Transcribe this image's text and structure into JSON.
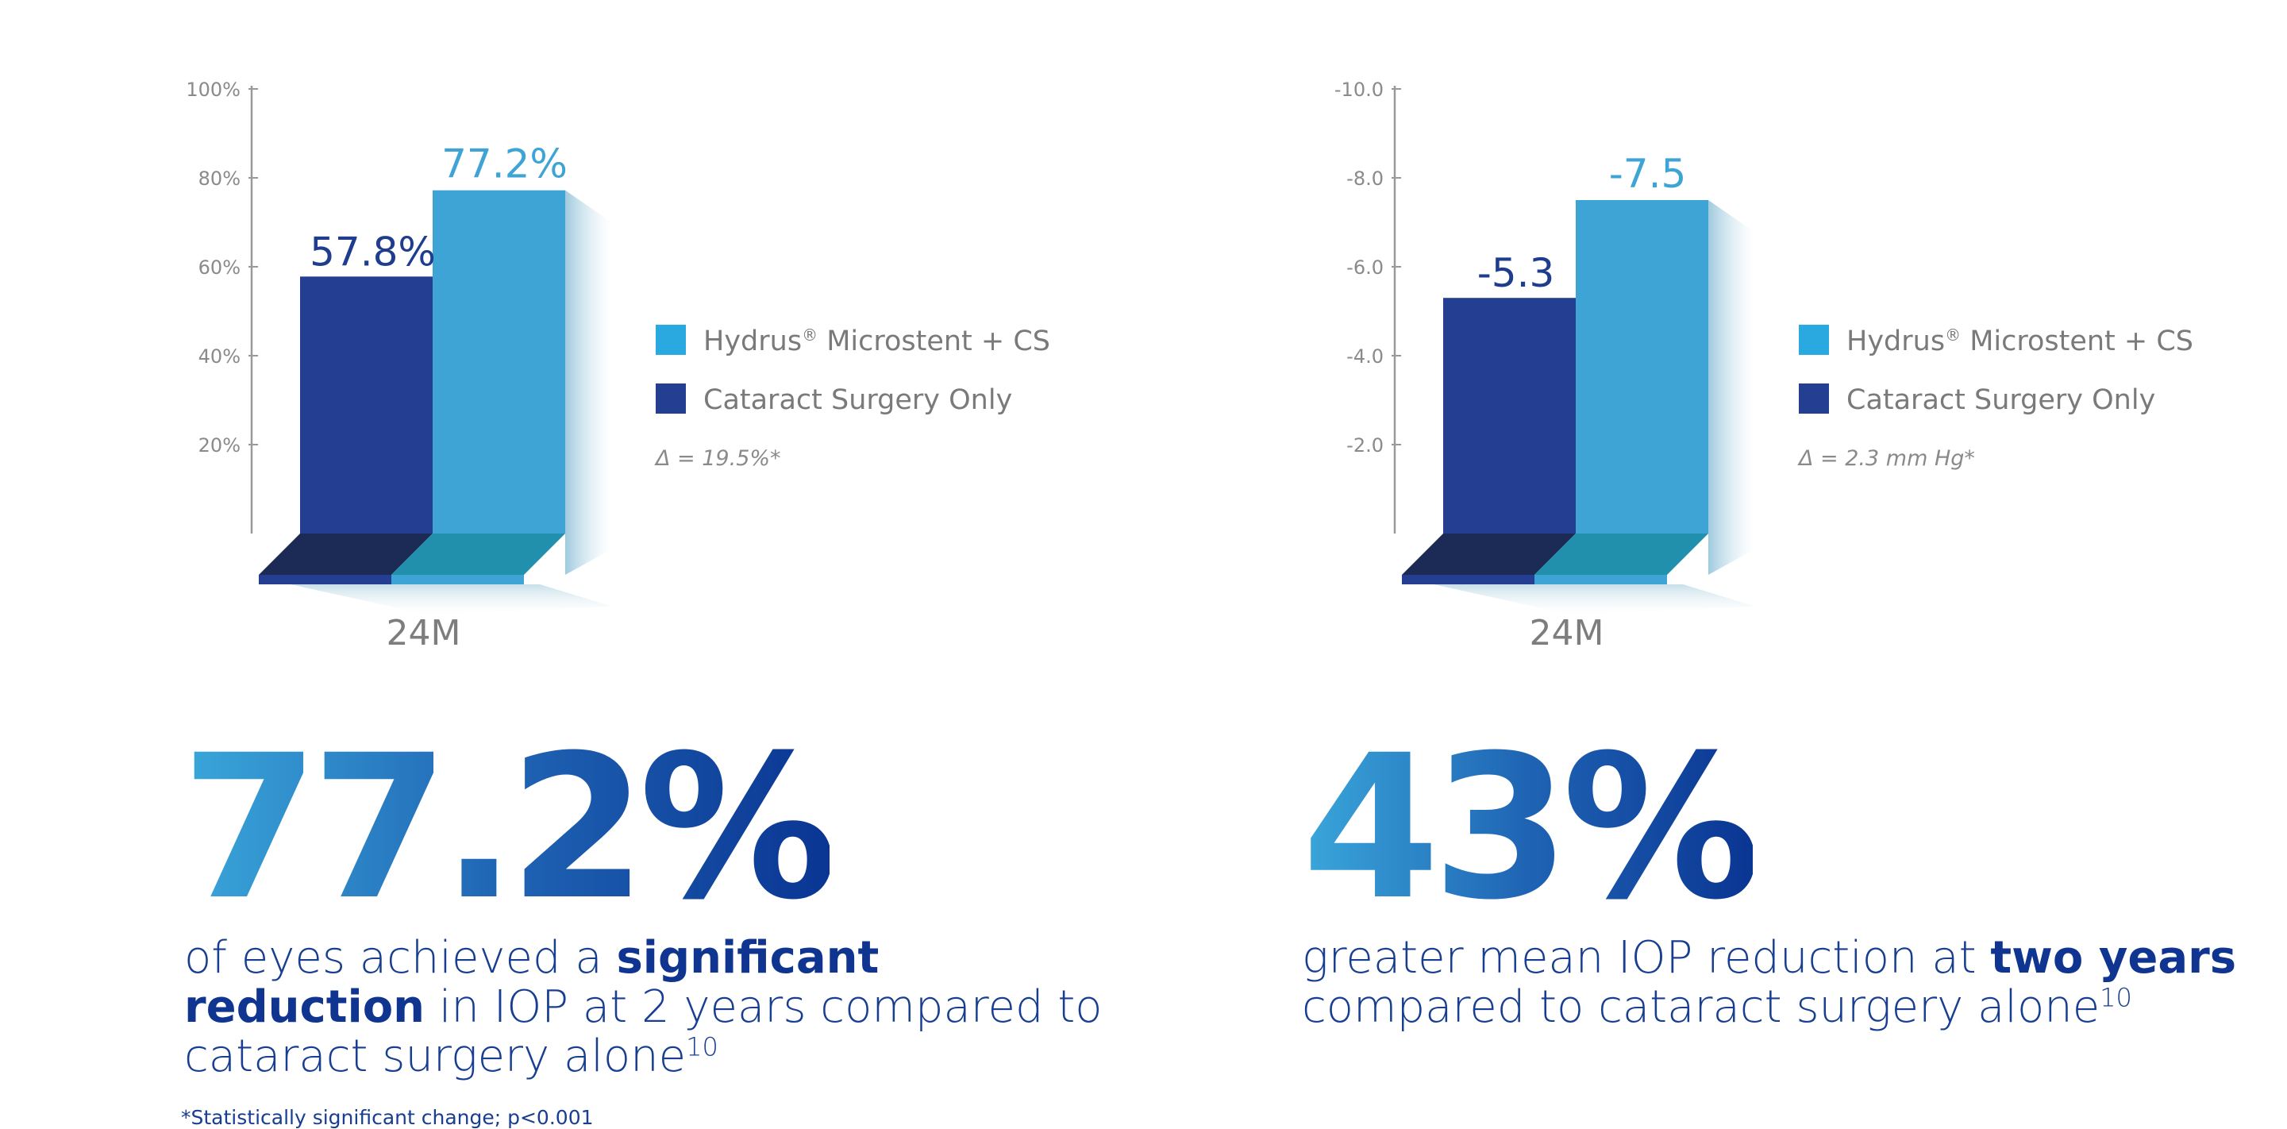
{
  "chart_data": [
    {
      "type": "bar",
      "title": "",
      "categories": [
        "24M"
      ],
      "series": [
        {
          "name": "Cataract Surgery Only",
          "values": [
            57.8
          ],
          "label": "57.8%"
        },
        {
          "name": "Hydrus® Microstent + CS",
          "values": [
            77.2
          ],
          "label": "77.2%"
        }
      ],
      "yticks": [
        "20%",
        "40%",
        "60%",
        "80%",
        "100%"
      ],
      "ytick_values": [
        20,
        40,
        60,
        80,
        100
      ],
      "ylim": [
        0,
        100
      ],
      "delta": "Δ = 19.5%*",
      "legend": {
        "brand": "Hydrus",
        "reg": "®",
        "rest": " Microstent + CS",
        "second": "Cataract Surgery Only",
        "position": "right"
      }
    },
    {
      "type": "bar",
      "title": "",
      "categories": [
        "24M"
      ],
      "series": [
        {
          "name": "Cataract Surgery Only",
          "values": [
            -5.3
          ],
          "label": "-5.3"
        },
        {
          "name": "Hydrus® Microstent + CS",
          "values": [
            -7.5
          ],
          "label": "-7.5"
        }
      ],
      "yticks": [
        "-2.0",
        "-4.0",
        "-6.0",
        "-8.0",
        "-10.0"
      ],
      "ytick_values": [
        -2,
        -4,
        -6,
        -8,
        -10
      ],
      "ylim": [
        0,
        -10
      ],
      "delta": "Δ = 2.3 mm Hg*",
      "legend": {
        "brand": "Hydrus",
        "reg": "®",
        "rest": " Microstent + CS",
        "second": "Cataract Surgery Only",
        "position": "right"
      }
    }
  ],
  "colors": {
    "hydrus": "#3ea4d6",
    "hydrus_base": "#2190ad",
    "hydrus_legend": "#2aa8e0",
    "cataract": "#243f91",
    "cataract_base": "#1b2b56",
    "axis": "#999999",
    "hydrus_label": "#3ea4d6",
    "cataract_label": "#1f3d8f"
  },
  "stat1": {
    "big": "77.2%",
    "pre": "of eyes achieved a ",
    "bold": "significant reduction",
    "post": " in IOP at 2 years compared to cataract surgery alone",
    "sup": "10"
  },
  "stat2": {
    "big": "43%",
    "pre": "greater mean IOP reduction at ",
    "bold": "two years",
    "post": " compared to cataract surgery alone",
    "sup": "10"
  },
  "footnote": "*Statistically significant change; p<0.001"
}
